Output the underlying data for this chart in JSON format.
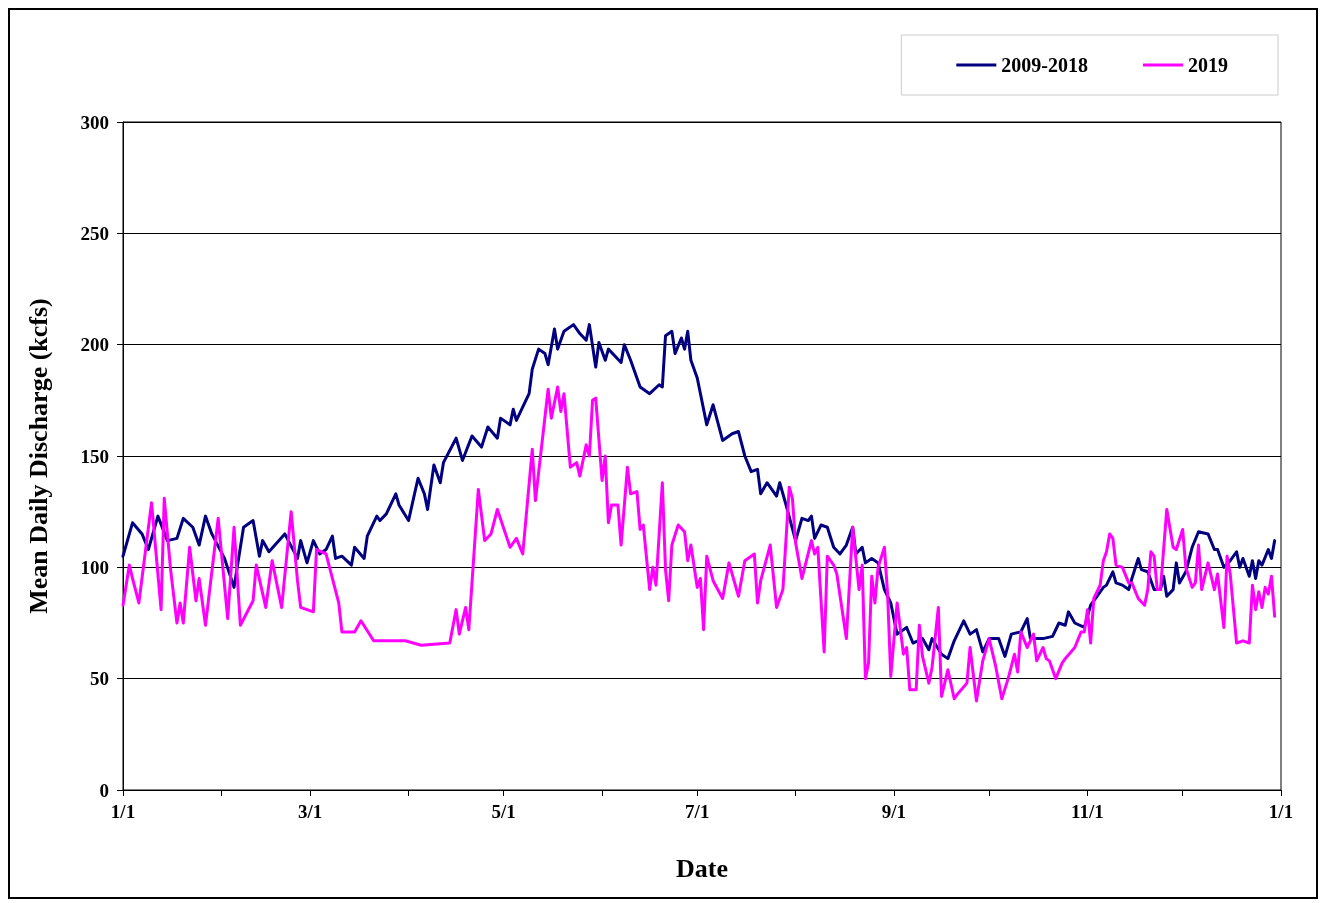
{
  "chart_data": {
    "type": "line",
    "xlabel": "Date",
    "ylabel": "Mean Daily Discharge (kcfs)",
    "xlim": [
      "2019-01-01",
      "2020-01-01"
    ],
    "xticks": [
      {
        "value": "2019-01-01",
        "label": "1/1"
      },
      {
        "value": "2019-02-01",
        "label": null
      },
      {
        "value": "2019-03-01",
        "label": "3/1"
      },
      {
        "value": "2019-04-01",
        "label": null
      },
      {
        "value": "2019-05-01",
        "label": "5/1"
      },
      {
        "value": "2019-06-01",
        "label": null
      },
      {
        "value": "2019-07-01",
        "label": "7/1"
      },
      {
        "value": "2019-08-01",
        "label": null
      },
      {
        "value": "2019-09-01",
        "label": "9/1"
      },
      {
        "value": "2019-10-01",
        "label": null
      },
      {
        "value": "2019-11-01",
        "label": "11/1"
      },
      {
        "value": "2019-12-01",
        "label": null
      },
      {
        "value": "2020-01-01",
        "label": "1/1"
      }
    ],
    "ylim": [
      0,
      300
    ],
    "yticks": [
      0,
      50,
      100,
      150,
      200,
      250,
      300
    ],
    "grid": "y",
    "legend": "top right",
    "marker": "none",
    "line_style": "solid",
    "series": [
      {
        "name": "2009-2018",
        "color": "#000080",
        "x": [
          "2019-01-01",
          "2019-01-04",
          "2019-01-07",
          "2019-01-09",
          "2019-01-12",
          "2019-01-15",
          "2019-01-18",
          "2019-01-20",
          "2019-01-23",
          "2019-01-25",
          "2019-01-27",
          "2019-01-29",
          "2019-02-02",
          "2019-02-05",
          "2019-02-08",
          "2019-02-11",
          "2019-02-13",
          "2019-02-14",
          "2019-02-16",
          "2019-02-21",
          "2019-02-25",
          "2019-02-26",
          "2019-02-28",
          "2019-03-02",
          "2019-03-04",
          "2019-03-06",
          "2019-03-08",
          "2019-03-09",
          "2019-03-11",
          "2019-03-14",
          "2019-03-15",
          "2019-03-18",
          "2019-03-19",
          "2019-03-22",
          "2019-03-23",
          "2019-03-25",
          "2019-03-28",
          "2019-03-29",
          "2019-04-01",
          "2019-04-04",
          "2019-04-06",
          "2019-04-07",
          "2019-04-09",
          "2019-04-11",
          "2019-04-12",
          "2019-04-16",
          "2019-04-18",
          "2019-04-21",
          "2019-04-24",
          "2019-04-26",
          "2019-04-29",
          "2019-04-30",
          "2019-05-03",
          "2019-05-04",
          "2019-05-05",
          "2019-05-09",
          "2019-05-10",
          "2019-05-12",
          "2019-05-14",
          "2019-05-15",
          "2019-05-17",
          "2019-05-18",
          "2019-05-20",
          "2019-05-23",
          "2019-05-25",
          "2019-05-27",
          "2019-05-28",
          "2019-05-30",
          "2019-05-31",
          "2019-06-02",
          "2019-06-03",
          "2019-06-07",
          "2019-06-08",
          "2019-06-10",
          "2019-06-13",
          "2019-06-16",
          "2019-06-19",
          "2019-06-20",
          "2019-06-21",
          "2019-06-23",
          "2019-06-24",
          "2019-06-26",
          "2019-06-27",
          "2019-06-28",
          "2019-06-29",
          "2019-07-01",
          "2019-07-04",
          "2019-07-06",
          "2019-07-09",
          "2019-07-12",
          "2019-07-14",
          "2019-07-16",
          "2019-07-18",
          "2019-07-20",
          "2019-07-21",
          "2019-07-23",
          "2019-07-26",
          "2019-07-27",
          "2019-07-29",
          "2019-08-01",
          "2019-08-03",
          "2019-08-05",
          "2019-08-06",
          "2019-08-07",
          "2019-08-09",
          "2019-08-11",
          "2019-08-13",
          "2019-08-15",
          "2019-08-17",
          "2019-08-19",
          "2019-08-20",
          "2019-08-22",
          "2019-08-23",
          "2019-08-25",
          "2019-08-27",
          "2019-08-29",
          "2019-08-31",
          "2019-09-02",
          "2019-09-05",
          "2019-09-07",
          "2019-09-10",
          "2019-09-12",
          "2019-09-13",
          "2019-09-16",
          "2019-09-18",
          "2019-09-20",
          "2019-09-23",
          "2019-09-25",
          "2019-09-27",
          "2019-09-29",
          "2019-10-01",
          "2019-10-04",
          "2019-10-06",
          "2019-10-08",
          "2019-10-11",
          "2019-10-13",
          "2019-10-14",
          "2019-10-18",
          "2019-10-21",
          "2019-10-23",
          "2019-10-25",
          "2019-10-26",
          "2019-10-28",
          "2019-10-31",
          "2019-11-02",
          "2019-11-04",
          "2019-11-06",
          "2019-11-07",
          "2019-11-09",
          "2019-11-10",
          "2019-11-12",
          "2019-11-14",
          "2019-11-15",
          "2019-11-17",
          "2019-11-18",
          "2019-11-20",
          "2019-11-22",
          "2019-11-24",
          "2019-11-25",
          "2019-11-26",
          "2019-11-28",
          "2019-11-29",
          "2019-11-30",
          "2019-12-02",
          "2019-12-04",
          "2019-12-06",
          "2019-12-09",
          "2019-12-11",
          "2019-12-12",
          "2019-12-14",
          "2019-12-16",
          "2019-12-18",
          "2019-12-19",
          "2019-12-20",
          "2019-12-22",
          "2019-12-23",
          "2019-12-24",
          "2019-12-25",
          "2019-12-26",
          "2019-12-28",
          "2019-12-29",
          "2019-12-30"
        ],
        "values": [
          105,
          120,
          115,
          108,
          123,
          112,
          113,
          122,
          118,
          110,
          123,
          115,
          104,
          91,
          118,
          121,
          105,
          112,
          107,
          115,
          104,
          112,
          102,
          112,
          106,
          108,
          114,
          104,
          105,
          101,
          109,
          104,
          114,
          123,
          121,
          124,
          133,
          128,
          121,
          140,
          133,
          126,
          146,
          138,
          147,
          158,
          148,
          159,
          154,
          163,
          158,
          167,
          164,
          171,
          166,
          178,
          189,
          198,
          196,
          191,
          207,
          198,
          206,
          209,
          205,
          202,
          209,
          190,
          201,
          193,
          198,
          192,
          200,
          193,
          181,
          178,
          182,
          181,
          204,
          206,
          196,
          203,
          198,
          206,
          193,
          185,
          164,
          173,
          157,
          160,
          161,
          150,
          143,
          144,
          133,
          138,
          132,
          138,
          128,
          112,
          122,
          121,
          123,
          113,
          119,
          118,
          109,
          106,
          110,
          118,
          106,
          109,
          102,
          104,
          102,
          90,
          84,
          70,
          73,
          66,
          68,
          63,
          68,
          61,
          59,
          67,
          76,
          70,
          72,
          62,
          68,
          68,
          60,
          70,
          71,
          77,
          68,
          68,
          69,
          75,
          74,
          80,
          75,
          73,
          83,
          87,
          91,
          92,
          98,
          93,
          92,
          90,
          95,
          104,
          99,
          98,
          90,
          90,
          96,
          87,
          90,
          102,
          93,
          98,
          109,
          116,
          115,
          108,
          108,
          100,
          103,
          107,
          100,
          104,
          96,
          103,
          95,
          103,
          101,
          108,
          104,
          112
        ]
      },
      {
        "name": "2019",
        "color": "#ff00ff",
        "x": [
          "2019-01-01",
          "2019-01-03",
          "2019-01-04",
          "2019-01-06",
          "2019-01-10",
          "2019-01-13",
          "2019-01-14",
          "2019-01-16",
          "2019-01-18",
          "2019-01-19",
          "2019-01-20",
          "2019-01-22",
          "2019-01-24",
          "2019-01-25",
          "2019-01-27",
          "2019-01-31",
          "2019-02-03",
          "2019-02-05",
          "2019-02-07",
          "2019-02-11",
          "2019-02-12",
          "2019-02-15",
          "2019-02-17",
          "2019-02-20",
          "2019-02-23",
          "2019-02-25",
          "2019-02-26",
          "2019-03-02",
          "2019-03-03",
          "2019-03-06",
          "2019-03-10",
          "2019-03-11",
          "2019-03-15",
          "2019-03-17",
          "2019-03-21",
          "2019-03-31",
          "2019-04-05",
          "2019-04-14",
          "2019-04-16",
          "2019-04-17",
          "2019-04-19",
          "2019-04-20",
          "2019-04-23",
          "2019-04-25",
          "2019-04-27",
          "2019-04-29",
          "2019-05-03",
          "2019-05-05",
          "2019-05-07",
          "2019-05-10",
          "2019-05-11",
          "2019-05-15",
          "2019-05-16",
          "2019-05-18",
          "2019-05-19",
          "2019-05-20",
          "2019-05-22",
          "2019-05-24",
          "2019-05-25",
          "2019-05-27",
          "2019-05-28",
          "2019-05-29",
          "2019-05-30",
          "2019-06-01",
          "2019-06-02",
          "2019-06-03",
          "2019-06-04",
          "2019-06-06",
          "2019-06-07",
          "2019-06-09",
          "2019-06-10",
          "2019-06-12",
          "2019-06-13",
          "2019-06-14",
          "2019-06-16",
          "2019-06-17",
          "2019-06-18",
          "2019-06-20",
          "2019-06-21",
          "2019-06-22",
          "2019-06-23",
          "2019-06-25",
          "2019-06-27",
          "2019-06-28",
          "2019-06-29",
          "2019-07-01",
          "2019-07-02",
          "2019-07-03",
          "2019-07-04",
          "2019-07-06",
          "2019-07-09",
          "2019-07-11",
          "2019-07-14",
          "2019-07-16",
          "2019-07-19",
          "2019-07-20",
          "2019-07-21",
          "2019-07-24",
          "2019-07-26",
          "2019-07-28",
          "2019-07-30",
          "2019-07-31",
          "2019-08-01",
          "2019-08-03",
          "2019-08-06",
          "2019-08-07",
          "2019-08-08",
          "2019-08-10",
          "2019-08-11",
          "2019-08-13",
          "2019-08-14",
          "2019-08-17",
          "2019-08-19",
          "2019-08-21",
          "2019-08-22",
          "2019-08-23",
          "2019-08-24",
          "2019-08-25",
          "2019-08-26",
          "2019-08-27",
          "2019-08-29",
          "2019-08-30",
          "2019-08-31",
          "2019-09-02",
          "2019-09-04",
          "2019-09-05",
          "2019-09-06",
          "2019-09-08",
          "2019-09-09",
          "2019-09-10",
          "2019-09-12",
          "2019-09-13",
          "2019-09-15",
          "2019-09-16",
          "2019-09-18",
          "2019-09-20",
          "2019-09-21",
          "2019-09-24",
          "2019-09-25",
          "2019-09-27",
          "2019-09-29",
          "2019-10-01",
          "2019-10-03",
          "2019-10-05",
          "2019-10-07",
          "2019-10-09",
          "2019-10-10",
          "2019-10-11",
          "2019-10-13",
          "2019-10-15",
          "2019-10-16",
          "2019-10-18",
          "2019-10-19",
          "2019-10-20",
          "2019-10-22",
          "2019-10-24",
          "2019-10-25",
          "2019-10-28",
          "2019-10-30",
          "2019-10-31",
          "2019-11-01",
          "2019-11-02",
          "2019-11-03",
          "2019-11-05",
          "2019-11-06",
          "2019-11-07",
          "2019-11-08",
          "2019-11-09",
          "2019-11-10",
          "2019-11-12",
          "2019-11-14",
          "2019-11-15",
          "2019-11-17",
          "2019-11-19",
          "2019-11-20",
          "2019-11-21",
          "2019-11-22",
          "2019-11-23",
          "2019-11-24",
          "2019-11-26",
          "2019-11-28",
          "2019-11-29",
          "2019-12-01",
          "2019-12-02",
          "2019-12-04",
          "2019-12-05",
          "2019-12-06",
          "2019-12-07",
          "2019-12-09",
          "2019-12-11",
          "2019-12-12",
          "2019-12-14",
          "2019-12-15",
          "2019-12-16",
          "2019-12-18",
          "2019-12-20",
          "2019-12-22",
          "2019-12-23",
          "2019-12-24",
          "2019-12-25",
          "2019-12-26",
          "2019-12-27",
          "2019-12-28",
          "2019-12-29",
          "2019-12-30"
        ],
        "values": [
          83,
          101,
          95,
          84,
          129,
          81,
          131,
          99,
          75,
          84,
          75,
          109,
          85,
          95,
          74,
          122,
          77,
          118,
          74,
          85,
          101,
          82,
          103,
          82,
          125,
          94,
          82,
          80,
          108,
          106,
          84,
          71,
          71,
          76,
          67,
          67,
          65,
          66,
          81,
          70,
          82,
          72,
          135,
          112,
          115,
          126,
          109,
          113,
          106,
          153,
          130,
          180,
          167,
          181,
          170,
          178,
          145,
          147,
          141,
          155,
          150,
          175,
          176,
          139,
          150,
          120,
          128,
          128,
          110,
          145,
          133,
          134,
          117,
          119,
          90,
          100,
          92,
          138,
          99,
          85,
          110,
          119,
          116,
          103,
          110,
          91,
          95,
          72,
          105,
          94,
          86,
          102,
          87,
          103,
          106,
          84,
          94,
          110,
          82,
          90,
          136,
          131,
          111,
          95,
          112,
          106,
          109,
          62,
          105,
          101,
          97,
          68,
          118,
          90,
          101,
          50,
          57,
          96,
          84,
          100,
          109,
          88,
          51,
          84,
          61,
          64,
          45,
          45,
          74,
          60,
          48,
          55,
          82,
          42,
          54,
          41,
          43,
          48,
          64,
          40,
          58,
          68,
          56,
          41,
          50,
          61,
          53,
          71,
          64,
          70,
          58,
          64,
          59,
          58,
          50,
          57,
          59,
          64,
          71,
          71,
          81,
          66,
          86,
          92,
          103,
          107,
          115,
          113,
          101,
          100,
          93,
          93,
          86,
          83,
          90,
          107,
          105,
          90,
          90,
          126,
          109,
          108,
          117,
          100,
          91,
          93,
          110,
          90,
          102,
          90,
          97,
          73,
          105,
          97,
          66,
          67,
          66,
          92,
          81,
          89,
          82,
          91,
          88,
          96,
          78
        ]
      }
    ]
  }
}
